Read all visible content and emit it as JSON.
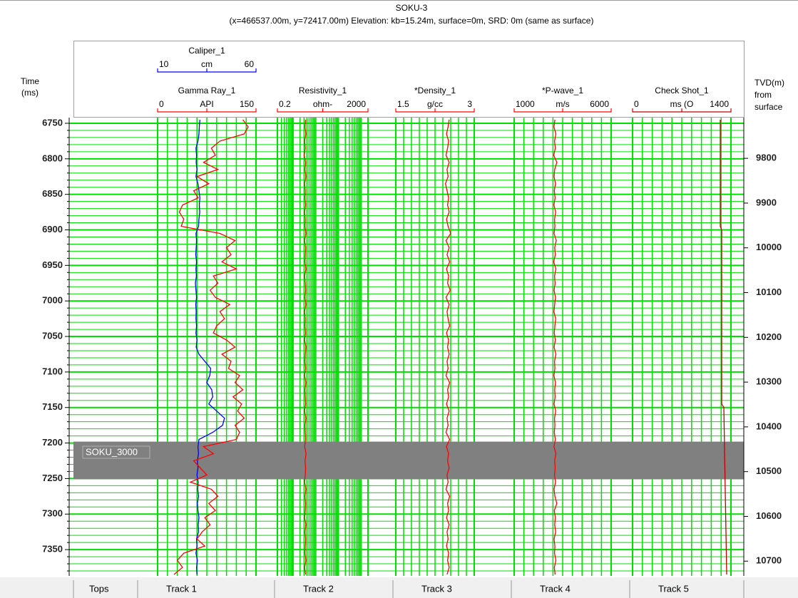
{
  "chart_data": {
    "type": "well-log",
    "title": "SOKU-3",
    "subtitle": "(x=466537.00m, y=72417.00m) Elevation: kb=15.24m, surface=0m, SRD: 0m (same as surface)",
    "ylabel": [
      "Time",
      "(ms)"
    ],
    "y2label": [
      "TVD(m)",
      "from",
      "surface"
    ],
    "ylim": [
      6742,
      7387
    ],
    "yticks": [
      6750,
      6800,
      6850,
      6900,
      6950,
      7000,
      7050,
      7100,
      7150,
      7200,
      7250,
      7300,
      7350
    ],
    "yminorticks": [
      6760,
      6770,
      6780,
      6790,
      6810,
      6820,
      6830,
      6840,
      6860,
      6870,
      6880,
      6890,
      6910,
      6920,
      6930,
      6940,
      6960,
      6970,
      6980,
      6990,
      7010,
      7020,
      7030,
      7040,
      7060,
      7070,
      7080,
      7090,
      7110,
      7120,
      7130,
      7140,
      7160,
      7170,
      7180,
      7190,
      7210,
      7220,
      7230,
      7240,
      7260,
      7270,
      7280,
      7290,
      7310,
      7320,
      7330,
      7340,
      7360,
      7370,
      7380
    ],
    "y2lim": [
      9709,
      10733
    ],
    "y2ticks": [
      9800,
      9900,
      10000,
      10100,
      10200,
      10300,
      10400,
      10500,
      10600,
      10700
    ],
    "grid": true,
    "grid_color": "#00e000",
    "time": [
      6745,
      6755,
      6765,
      6775,
      6785,
      6795,
      6805,
      6815,
      6825,
      6835,
      6845,
      6855,
      6865,
      6875,
      6885,
      6895,
      6905,
      6915,
      6925,
      6935,
      6945,
      6955,
      6965,
      6975,
      6985,
      6995,
      7005,
      7015,
      7025,
      7035,
      7045,
      7055,
      7065,
      7075,
      7085,
      7095,
      7105,
      7115,
      7125,
      7135,
      7145,
      7155,
      7165,
      7175,
      7185,
      7195,
      7205,
      7215,
      7225,
      7235,
      7245,
      7255,
      7265,
      7275,
      7285,
      7295,
      7305,
      7315,
      7325,
      7335,
      7345,
      7355,
      7365,
      7375,
      7385
    ],
    "tops_label": "Tops",
    "tops": [
      {
        "name": "SOKU_3000",
        "top": 7198,
        "base": 7251,
        "color": "#808080"
      }
    ],
    "tracks": [
      {
        "name": "Track 1",
        "curves": [
          {
            "name": "Caliper_1",
            "unit": "cm",
            "xlim": [
              10,
              60
            ],
            "color": "#0000ff",
            "values": [
              31.5,
              31.2,
              31.0,
              30.5,
              29.5,
              29.8,
              29.6,
              30.0,
              29.5,
              30.5,
              31.0,
              31.5,
              31.2,
              31.4,
              31.0,
              30.8,
              29.5,
              29.8,
              29.6,
              29.4,
              29.8,
              29.5,
              29.7,
              29.2,
              29.5,
              29.8,
              29.4,
              29.6,
              29.5,
              29.8,
              29.5,
              30.0,
              29.6,
              31.0,
              34.0,
              37.0,
              36.5,
              35.0,
              37.5,
              38.0,
              36.0,
              40.0,
              44.0,
              43.0,
              38.0,
              31.0,
              30.5,
              30.8,
              30.2,
              30.5,
              30.0,
              30.6,
              30.4,
              30.8,
              30.2,
              30.5,
              31.0,
              30.6,
              30.8,
              29.8,
              30.0,
              29.5,
              30.2,
              29.8,
              30.0
            ]
          },
          {
            "name": "Gamma Ray_1",
            "unit": "API",
            "xlim": [
              0,
              150
            ],
            "color": "#ff0000",
            "values": [
              130,
              138,
              132,
              95,
              82,
              88,
              70,
              92,
              60,
              78,
              55,
              62,
              38,
              33,
              40,
              36,
              95,
              118,
              105,
              112,
              98,
              120,
              85,
              92,
              80,
              88,
              110,
              95,
              102,
              90,
              85,
              105,
              118,
              98,
              112,
              108,
              125,
              118,
              130,
              115,
              128,
              122,
              132,
              118,
              125,
              120,
              70,
              85,
              55,
              65,
              75,
              50,
              82,
              92,
              78,
              88,
              72,
              80,
              68,
              60,
              72,
              40,
              30,
              38,
              25
            ]
          }
        ]
      },
      {
        "name": "Track 2",
        "curves": [
          {
            "name": "Resistivity_1",
            "unit": "ohm-",
            "xlim": [
              0.2,
              2000
            ],
            "log": true,
            "color": "#ff0000",
            "values": [
              3.5,
              3.3,
              3.6,
              3.2,
              3.4,
              3.1,
              3.5,
              3.3,
              3.6,
              3.2,
              3.4,
              3.3,
              3.5,
              3.2,
              3.4,
              3.3,
              3.6,
              3.2,
              3.5,
              3.4,
              3.3,
              3.6,
              3.2,
              3.4,
              3.5,
              3.3,
              3.6,
              3.2,
              3.4,
              3.3,
              3.5,
              3.2,
              3.6,
              3.4,
              3.3,
              3.5,
              3.2,
              3.6,
              3.3,
              3.4,
              3.5,
              3.2,
              3.6,
              3.3,
              3.4,
              3.5,
              3.2,
              3.7,
              3.3,
              3.5,
              3.4,
              3.2,
              3.6,
              3.3,
              3.5,
              3.4,
              3.2,
              3.6,
              3.3,
              3.5,
              3.4,
              3.3,
              3.6,
              3.2,
              3.5
            ]
          }
        ]
      },
      {
        "name": "Track 3",
        "curves": [
          {
            "name": "*Density_1",
            "unit": "g/cc",
            "xlim": [
              1.5,
              3
            ],
            "color": "#ff0000",
            "values": [
              2.52,
              2.5,
              2.47,
              2.51,
              2.49,
              2.46,
              2.52,
              2.48,
              2.5,
              2.45,
              2.48,
              2.51,
              2.49,
              2.52,
              2.47,
              2.5,
              2.55,
              2.46,
              2.52,
              2.48,
              2.53,
              2.47,
              2.51,
              2.49,
              2.54,
              2.46,
              2.52,
              2.48,
              2.5,
              2.53,
              2.47,
              2.51,
              2.49,
              2.52,
              2.48,
              2.5,
              2.46,
              2.53,
              2.49,
              2.51,
              2.47,
              2.52,
              2.48,
              2.5,
              2.46,
              2.53,
              2.47,
              2.51,
              2.49,
              2.52,
              2.48,
              2.5,
              2.46,
              2.53,
              2.49,
              2.51,
              2.47,
              2.52,
              2.48,
              2.5,
              2.47,
              2.51,
              2.49,
              2.52,
              2.48
            ]
          }
        ]
      },
      {
        "name": "Track 4",
        "curves": [
          {
            "name": "*P-wave_1",
            "unit": "m/s",
            "xlim": [
              1000,
              6000
            ],
            "color": "#ff0000",
            "values": [
              3100,
              3050,
              3150,
              3080,
              3120,
              3040,
              3200,
              3090,
              3060,
              3130,
              3070,
              3110,
              3050,
              3140,
              3080,
              3100,
              3060,
              3170,
              3090,
              3120,
              3040,
              3150,
              3080,
              3110,
              3060,
              3130,
              3090,
              3050,
              3140,
              3100,
              3070,
              3120,
              3060,
              3150,
              3080,
              3100,
              3050,
              3130,
              3090,
              3110,
              3060,
              3140,
              3080,
              3100,
              3070,
              3120,
              3050,
              3150,
              3090,
              3110,
              3080,
              3130,
              3060,
              3100,
              3200,
              3070,
              3120,
              3090,
              3140,
              3060,
              3100,
              3080,
              3150,
              3070,
              3110
            ]
          }
        ]
      },
      {
        "name": "Track 5",
        "curves": [
          {
            "name": "Check Shot_1",
            "unit": "ms (O",
            "xlim": [
              0,
              1400
            ],
            "color": "#c00000",
            "time": [
              6745,
              6895,
              6900,
              7145,
              7150,
              7385
            ],
            "values": [
              1248,
              1248,
              1268,
              1268,
              1299,
              1339
            ]
          }
        ]
      }
    ]
  }
}
